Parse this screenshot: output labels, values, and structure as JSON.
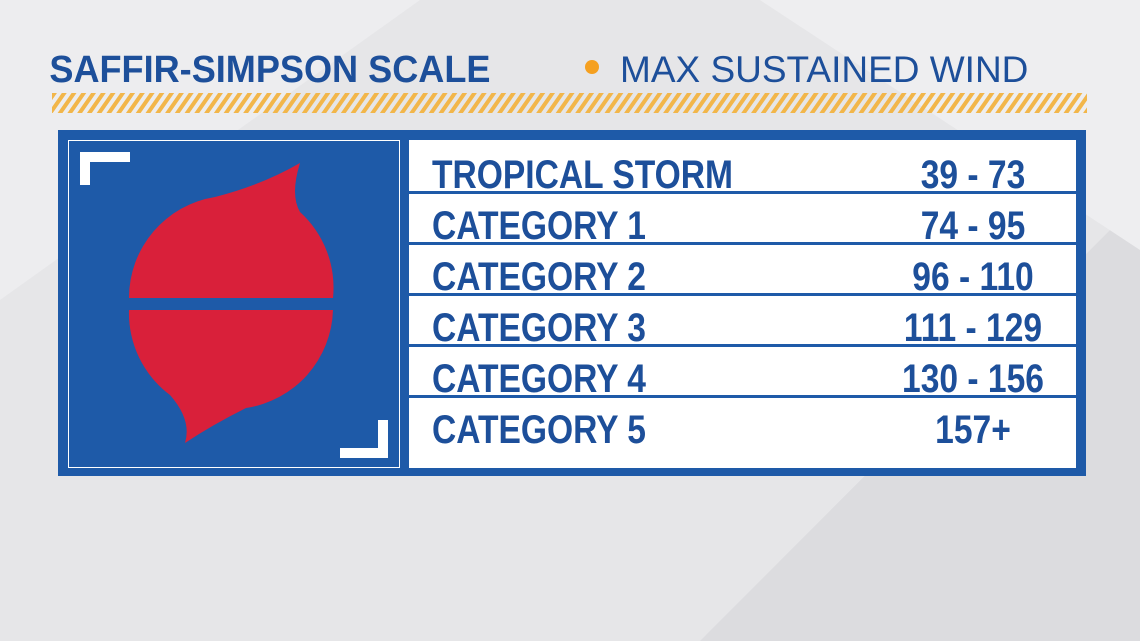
{
  "header": {
    "title": "SAFFIR-SIMPSON SCALE",
    "subtitle": "MAX SUSTAINED WIND"
  },
  "table": {
    "rows": [
      [
        "TROPICAL STORM",
        "39 - 73"
      ],
      [
        "CATEGORY 1",
        "74 - 95"
      ],
      [
        "CATEGORY 2",
        "96 - 110"
      ],
      [
        "CATEGORY 3",
        "111 - 129"
      ],
      [
        "CATEGORY 4",
        "130 - 156"
      ],
      [
        "CATEGORY 5",
        "157+"
      ]
    ]
  }
}
